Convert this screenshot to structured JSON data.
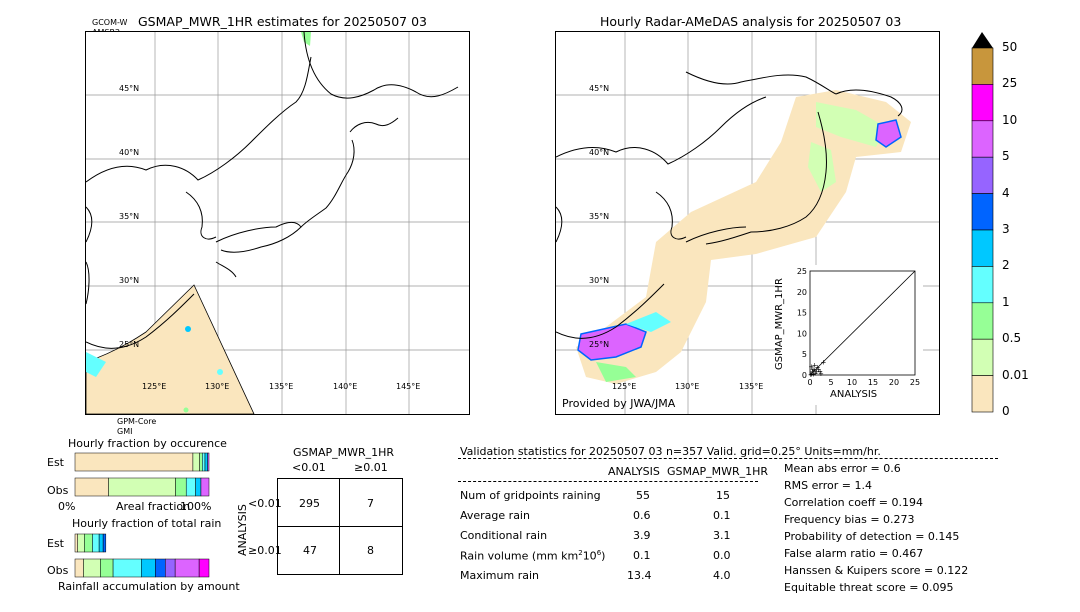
{
  "left_map": {
    "title": "GSMAP_MWR_1HR estimates for 20250507 03",
    "sensor_top": [
      "GCOM-W",
      "AMSR2"
    ],
    "sensor_bottom": [
      "GPM-Core",
      "GMI"
    ],
    "lat_labels": [
      "45°N",
      "40°N",
      "35°N",
      "30°N",
      "25°N"
    ],
    "lon_labels": [
      "125°E",
      "130°E",
      "135°E",
      "140°E",
      "145°E"
    ]
  },
  "right_map": {
    "title": "Hourly Radar-AMeDAS analysis for 20250507 03",
    "credit": "Provided by JWA/JMA",
    "lat_labels": [
      "45°N",
      "40°N",
      "35°N",
      "30°N",
      "25°N"
    ],
    "lon_labels": [
      "125°E",
      "130°E",
      "135°E"
    ]
  },
  "colorbar": {
    "labels": [
      "50",
      "25",
      "10",
      "5",
      "4",
      "3",
      "2",
      "1",
      "0.5",
      "0.01",
      "0"
    ],
    "colors": [
      "#c8963c",
      "#ff00ff",
      "#dc64ff",
      "#9664ff",
      "#0064ff",
      "#00c8ff",
      "#64ffff",
      "#96ff96",
      "#d2ffb4",
      "#fae6be"
    ],
    "top_color": "#000000"
  },
  "scatter": {
    "xlabel": "ANALYSIS",
    "ylabel": "GSMAP_MWR_1HR",
    "ticks": [
      "0",
      "5",
      "10",
      "15",
      "20",
      "25"
    ]
  },
  "chart_data": [
    {
      "type": "scatter",
      "title": "",
      "xlabel": "ANALYSIS",
      "ylabel": "GSMAP_MWR_1HR",
      "xlim": [
        0,
        25
      ],
      "ylim": [
        0,
        25
      ],
      "points": [
        [
          0.2,
          0.1
        ],
        [
          0.4,
          0.3
        ],
        [
          0.6,
          0.8
        ],
        [
          0.8,
          0.2
        ],
        [
          1.0,
          1.2
        ],
        [
          1.3,
          0.5
        ],
        [
          1.6,
          0.9
        ],
        [
          2.0,
          1.5
        ],
        [
          2.4,
          1.0
        ],
        [
          3.2,
          3.1
        ],
        [
          0.3,
          2.0
        ],
        [
          1.1,
          2.4
        ],
        [
          2.6,
          0.4
        ],
        [
          1.8,
          1.9
        ],
        [
          0.7,
          1.4
        ]
      ],
      "diagonal": true
    },
    {
      "type": "bar",
      "title": "Hourly fraction by occurence",
      "categories": [
        "Est",
        "Obs"
      ],
      "xlabels": [
        "0%",
        "Areal fraction",
        "100%"
      ],
      "series": [
        {
          "values": [
            0.88,
            0.25
          ],
          "color": "#fae6be"
        },
        {
          "values": [
            0.05,
            0.5
          ],
          "color": "#d2ffb4"
        },
        {
          "values": [
            0.02,
            0.08
          ],
          "color": "#96ff96"
        },
        {
          "values": [
            0.02,
            0.07
          ],
          "color": "#64ffff"
        },
        {
          "values": [
            0.02,
            0.04
          ],
          "color": "#00c8ff"
        },
        {
          "values": [
            0.01,
            0.06
          ],
          "color": "#dc64ff"
        }
      ]
    },
    {
      "type": "bar",
      "title": "Hourly fraction of total rain",
      "categories": [
        "Est",
        "Obs"
      ],
      "xlabels": [
        "Rainfall accumulation by amount"
      ],
      "series": [
        {
          "values": [
            0.02,
            0.06
          ],
          "color": "#fae6be"
        },
        {
          "values": [
            0.05,
            0.12
          ],
          "color": "#d2ffb4"
        },
        {
          "values": [
            0.06,
            0.09
          ],
          "color": "#96ff96"
        },
        {
          "values": [
            0.05,
            0.2
          ],
          "color": "#64ffff"
        },
        {
          "values": [
            0.03,
            0.1
          ],
          "color": "#00c8ff"
        },
        {
          "values": [
            0.02,
            0.07
          ],
          "color": "#0064ff"
        },
        {
          "values": [
            0.0,
            0.07
          ],
          "color": "#9664ff"
        },
        {
          "values": [
            0.0,
            0.17
          ],
          "color": "#dc64ff"
        },
        {
          "values": [
            0.0,
            0.07
          ],
          "color": "#ff00ff"
        }
      ]
    },
    {
      "type": "table",
      "title": "GSMAP_MWR_1HR",
      "col_headers": [
        "<0.01",
        "≥0.01"
      ],
      "row_headers": [
        "<0.01",
        "≥0.01"
      ],
      "row_axis_label": "ANALYSIS",
      "cells": [
        [
          295,
          7
        ],
        [
          47,
          8
        ]
      ]
    }
  ],
  "contingency": {
    "title": "GSMAP_MWR_1HR",
    "col_lt": "<0.01",
    "col_ge": "≥0.01",
    "row_lt": "<0.01",
    "row_ge": "≥0.01",
    "axis": "ANALYSIS",
    "c11": "295",
    "c12": "7",
    "c21": "47",
    "c22": "8"
  },
  "occurrence": {
    "title": "Hourly fraction by occurence",
    "est": "Est",
    "obs": "Obs",
    "x0": "0%",
    "xmid": "Areal fraction",
    "x1": "100%"
  },
  "totalrain": {
    "title": "Hourly fraction of total rain",
    "est": "Est",
    "obs": "Obs",
    "xlabel": "Rainfall accumulation by amount"
  },
  "validation": {
    "header": "Validation statistics for 20250507 03  n=357 Valid. grid=0.25° Units=mm/hr.",
    "col_analysis": "ANALYSIS",
    "col_gsmap": "GSMAP_MWR_1HR",
    "rows": [
      {
        "label": "Num of gridpoints raining",
        "a": "55",
        "g": "15"
      },
      {
        "label": "Average rain",
        "a": "0.6",
        "g": "0.1"
      },
      {
        "label": "Conditional rain",
        "a": "3.9",
        "g": "3.1"
      },
      {
        "label": "Rain volume (mm km",
        "a": "0.1",
        "g": "0.0"
      },
      {
        "label": "Maximum rain",
        "a": "13.4",
        "g": "4.0"
      }
    ],
    "volume_sup": "2",
    "volume_mid": "10",
    "volume_sup2": "6",
    "volume_end": ")",
    "scores": [
      "Mean abs error =    0.6",
      "RMS error =    1.4",
      "Correlation coeff =  0.194",
      "Frequency bias =  0.273",
      "Probability of detection =  0.145",
      "False alarm ratio =  0.467",
      "Hanssen & Kuipers score =  0.122",
      "Equitable threat score =  0.095"
    ]
  }
}
